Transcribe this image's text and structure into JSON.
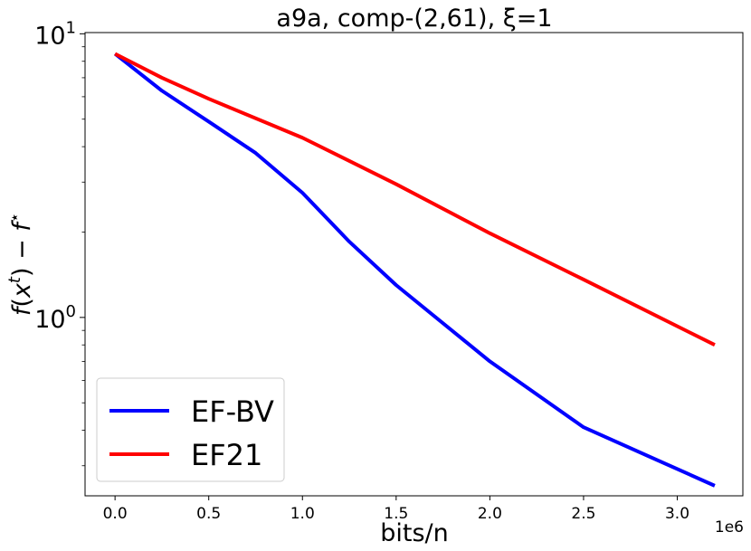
{
  "chart_data": {
    "type": "line",
    "title": "a9a, comp-(2,61), ξ=1",
    "xlabel": "bits/n",
    "ylabel": "f(xᵗ) − f*",
    "x_scale_label": "1e6",
    "x_unit_multiplier": 1000000,
    "xlim": [
      -0.16,
      3.35
    ],
    "ylim": [
      0.235,
      10.1
    ],
    "y_scale": "log",
    "grid": false,
    "legend_position": "lower-left",
    "x_ticks": [
      0.0,
      0.5,
      1.0,
      1.5,
      2.0,
      2.5,
      3.0
    ],
    "x_tick_labels": [
      "0.0",
      "0.5",
      "1.0",
      "1.5",
      "2.0",
      "2.5",
      "3.0"
    ],
    "y_ticks": [
      {
        "value": 1,
        "base": "10",
        "exp": "0"
      },
      {
        "value": 10,
        "base": "10",
        "exp": "1"
      }
    ],
    "series": [
      {
        "name": "EF-BV",
        "color": "#0000ff",
        "x": [
          0.0,
          0.25,
          0.5,
          0.75,
          1.0,
          1.25,
          1.5,
          2.0,
          2.5,
          3.2
        ],
        "y": [
          8.5,
          6.3,
          4.9,
          3.8,
          2.75,
          1.85,
          1.3,
          0.7,
          0.41,
          0.255
        ]
      },
      {
        "name": "EF21",
        "color": "#ff0000",
        "x": [
          0.0,
          0.25,
          0.5,
          1.0,
          1.5,
          2.0,
          2.5,
          3.2
        ],
        "y": [
          8.5,
          7.0,
          5.9,
          4.3,
          2.95,
          1.98,
          1.36,
          0.8
        ]
      }
    ]
  }
}
